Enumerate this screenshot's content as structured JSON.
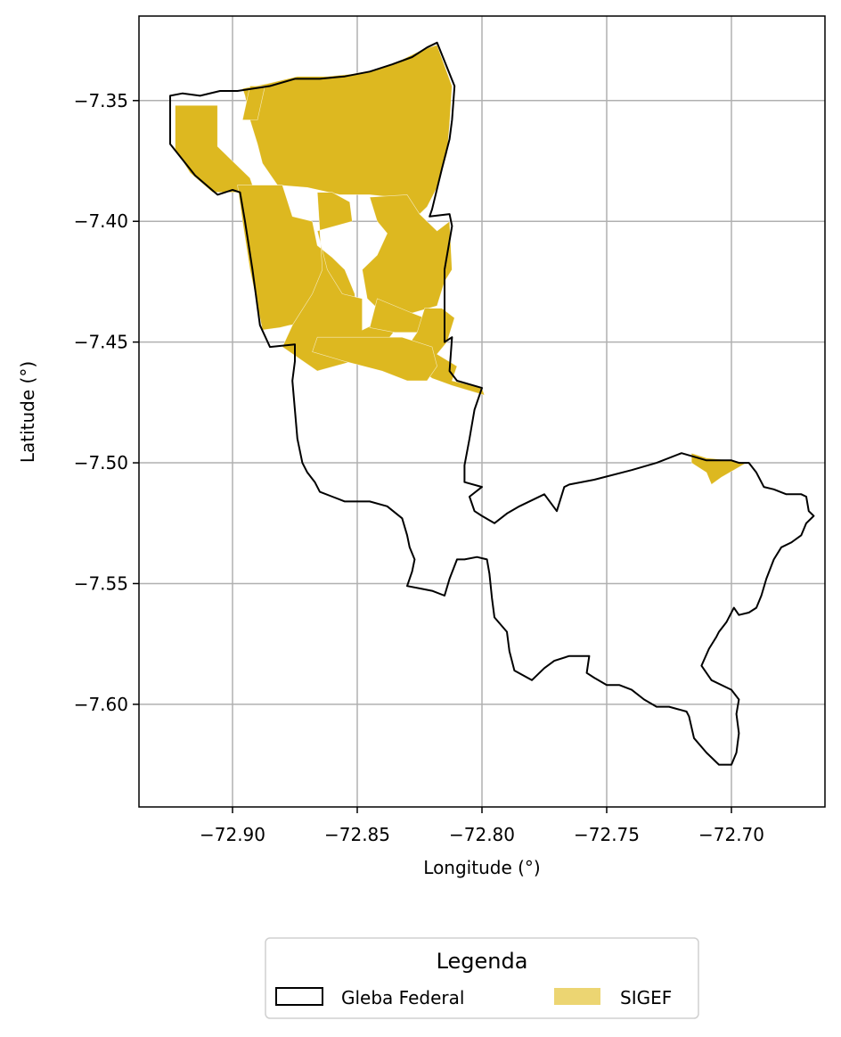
{
  "chart_data": {
    "type": "map",
    "xlabel": "Longitude (°)",
    "ylabel": "Latitude (°)",
    "xlim": [
      -72.9375,
      -72.6625
    ],
    "ylim": [
      -7.6425,
      -7.315
    ],
    "x_ticks": [
      -72.9,
      -72.85,
      -72.8,
      -72.75,
      -72.7
    ],
    "x_tick_labels": [
      "−72.90",
      "−72.85",
      "−72.80",
      "−72.75",
      "−72.70"
    ],
    "y_ticks": [
      -7.35,
      -7.4,
      -7.45,
      -7.5,
      -7.55,
      -7.6
    ],
    "y_tick_labels": [
      "−7.35",
      "−7.40",
      "−7.45",
      "−7.50",
      "−7.55",
      "−7.60"
    ],
    "grid": true,
    "colors": {
      "sigef": "#ddb820",
      "sigef_legend": "#ecd572",
      "boundary": "#000000",
      "grid": "#b0b0b0"
    },
    "layers": [
      {
        "name": "Gleba Federal",
        "style": "outline",
        "polygon": [
          [
            -72.925,
            -7.348
          ],
          [
            -72.92,
            -7.347
          ],
          [
            -72.913,
            -7.348
          ],
          [
            -72.905,
            -7.346
          ],
          [
            -72.898,
            -7.346
          ],
          [
            -72.885,
            -7.344
          ],
          [
            -72.875,
            -7.341
          ],
          [
            -72.865,
            -7.341
          ],
          [
            -72.855,
            -7.34
          ],
          [
            -72.845,
            -7.338
          ],
          [
            -72.836,
            -7.335
          ],
          [
            -72.828,
            -7.332
          ],
          [
            -72.822,
            -7.328
          ],
          [
            -72.818,
            -7.326
          ],
          [
            -72.811,
            -7.344
          ],
          [
            -72.812,
            -7.358
          ],
          [
            -72.813,
            -7.366
          ],
          [
            -72.816,
            -7.378
          ],
          [
            -72.82,
            -7.395
          ],
          [
            -72.821,
            -7.398
          ],
          [
            -72.813,
            -7.397
          ],
          [
            -72.812,
            -7.402
          ],
          [
            -72.815,
            -7.42
          ],
          [
            -72.815,
            -7.45
          ],
          [
            -72.812,
            -7.448
          ],
          [
            -72.813,
            -7.462
          ],
          [
            -72.81,
            -7.466
          ],
          [
            -72.8,
            -7.469
          ],
          [
            -72.803,
            -7.478
          ],
          [
            -72.805,
            -7.49
          ],
          [
            -72.807,
            -7.501
          ],
          [
            -72.807,
            -7.508
          ],
          [
            -72.8,
            -7.51
          ],
          [
            -72.805,
            -7.514
          ],
          [
            -72.803,
            -7.52
          ],
          [
            -72.8,
            -7.522
          ],
          [
            -72.795,
            -7.525
          ],
          [
            -72.79,
            -7.521
          ],
          [
            -72.785,
            -7.518
          ],
          [
            -72.775,
            -7.513
          ],
          [
            -72.77,
            -7.52
          ],
          [
            -72.767,
            -7.51
          ],
          [
            -72.765,
            -7.509
          ],
          [
            -72.755,
            -7.507
          ],
          [
            -72.74,
            -7.503
          ],
          [
            -72.73,
            -7.5
          ],
          [
            -72.72,
            -7.496
          ],
          [
            -72.71,
            -7.499
          ],
          [
            -72.7,
            -7.499
          ],
          [
            -72.697,
            -7.5
          ],
          [
            -72.693,
            -7.5
          ],
          [
            -72.69,
            -7.504
          ],
          [
            -72.687,
            -7.51
          ],
          [
            -72.683,
            -7.511
          ],
          [
            -72.678,
            -7.513
          ],
          [
            -72.672,
            -7.513
          ],
          [
            -72.67,
            -7.514
          ],
          [
            -72.669,
            -7.52
          ],
          [
            -72.667,
            -7.522
          ],
          [
            -72.67,
            -7.525
          ],
          [
            -72.672,
            -7.53
          ],
          [
            -72.676,
            -7.533
          ],
          [
            -72.68,
            -7.535
          ],
          [
            -72.683,
            -7.54
          ],
          [
            -72.686,
            -7.548
          ],
          [
            -72.688,
            -7.555
          ],
          [
            -72.69,
            -7.56
          ],
          [
            -72.693,
            -7.562
          ],
          [
            -72.697,
            -7.563
          ],
          [
            -72.699,
            -7.56
          ],
          [
            -72.702,
            -7.566
          ],
          [
            -72.705,
            -7.57
          ],
          [
            -72.706,
            -7.572
          ],
          [
            -72.709,
            -7.577
          ],
          [
            -72.712,
            -7.584
          ],
          [
            -72.708,
            -7.59
          ],
          [
            -72.7,
            -7.594
          ],
          [
            -72.697,
            -7.598
          ],
          [
            -72.698,
            -7.604
          ],
          [
            -72.697,
            -7.612
          ],
          [
            -72.698,
            -7.62
          ],
          [
            -72.7,
            -7.625
          ],
          [
            -72.705,
            -7.625
          ],
          [
            -72.71,
            -7.62
          ],
          [
            -72.715,
            -7.614
          ],
          [
            -72.717,
            -7.605
          ],
          [
            -72.718,
            -7.603
          ],
          [
            -72.725,
            -7.601
          ],
          [
            -72.73,
            -7.601
          ],
          [
            -72.735,
            -7.598
          ],
          [
            -72.74,
            -7.594
          ],
          [
            -72.745,
            -7.592
          ],
          [
            -72.75,
            -7.592
          ],
          [
            -72.755,
            -7.589
          ],
          [
            -72.758,
            -7.587
          ],
          [
            -72.757,
            -7.58
          ],
          [
            -72.765,
            -7.58
          ],
          [
            -72.771,
            -7.582
          ],
          [
            -72.775,
            -7.585
          ],
          [
            -72.78,
            -7.59
          ],
          [
            -72.787,
            -7.586
          ],
          [
            -72.789,
            -7.578
          ],
          [
            -72.79,
            -7.57
          ],
          [
            -72.795,
            -7.564
          ],
          [
            -72.796,
            -7.556
          ],
          [
            -72.797,
            -7.546
          ],
          [
            -72.798,
            -7.54
          ],
          [
            -72.802,
            -7.539
          ],
          [
            -72.807,
            -7.54
          ],
          [
            -72.81,
            -7.54
          ],
          [
            -72.813,
            -7.548
          ],
          [
            -72.815,
            -7.555
          ],
          [
            -72.82,
            -7.553
          ],
          [
            -72.825,
            -7.552
          ],
          [
            -72.83,
            -7.551
          ],
          [
            -72.828,
            -7.545
          ],
          [
            -72.827,
            -7.54
          ],
          [
            -72.829,
            -7.535
          ],
          [
            -72.83,
            -7.53
          ],
          [
            -72.832,
            -7.523
          ],
          [
            -72.838,
            -7.518
          ],
          [
            -72.845,
            -7.516
          ],
          [
            -72.855,
            -7.516
          ],
          [
            -72.86,
            -7.514
          ],
          [
            -72.865,
            -7.512
          ],
          [
            -72.867,
            -7.508
          ],
          [
            -72.87,
            -7.504
          ],
          [
            -72.872,
            -7.5
          ],
          [
            -72.874,
            -7.49
          ],
          [
            -72.875,
            -7.478
          ],
          [
            -72.876,
            -7.466
          ],
          [
            -72.875,
            -7.458
          ],
          [
            -72.875,
            -7.451
          ],
          [
            -72.885,
            -7.452
          ],
          [
            -72.889,
            -7.443
          ],
          [
            -72.892,
            -7.42
          ],
          [
            -72.895,
            -7.4
          ],
          [
            -72.897,
            -7.388
          ],
          [
            -72.9,
            -7.387
          ],
          [
            -72.906,
            -7.389
          ],
          [
            -72.915,
            -7.381
          ],
          [
            -72.925,
            -7.368
          ],
          [
            -72.925,
            -7.348
          ]
        ]
      },
      {
        "name": "SIGEF",
        "style": "fill",
        "polygons": [
          [
            [
              -72.923,
              -7.352
            ],
            [
              -72.906,
              -7.352
            ],
            [
              -72.906,
              -7.369
            ],
            [
              -72.893,
              -7.382
            ],
            [
              -72.891,
              -7.388
            ],
            [
              -72.908,
              -7.388
            ],
            [
              -72.917,
              -7.38
            ],
            [
              -72.923,
              -7.37
            ]
          ],
          [
            [
              -72.896,
              -7.345
            ],
            [
              -72.886,
              -7.343
            ],
            [
              -72.874,
              -7.34
            ],
            [
              -72.862,
              -7.34
            ],
            [
              -72.852,
              -7.339
            ],
            [
              -72.842,
              -7.337
            ],
            [
              -72.832,
              -7.333
            ],
            [
              -72.824,
              -7.329
            ],
            [
              -72.818,
              -7.327
            ],
            [
              -72.812,
              -7.344
            ],
            [
              -72.813,
              -7.36
            ],
            [
              -72.814,
              -7.372
            ],
            [
              -72.818,
              -7.386
            ],
            [
              -72.822,
              -7.394
            ],
            [
              -72.825,
              -7.397
            ],
            [
              -72.83,
              -7.393
            ],
            [
              -72.836,
              -7.39
            ],
            [
              -72.845,
              -7.389
            ],
            [
              -72.857,
              -7.389
            ],
            [
              -72.87,
              -7.386
            ],
            [
              -72.882,
              -7.385
            ],
            [
              -72.888,
              -7.376
            ],
            [
              -72.89,
              -7.368
            ],
            [
              -72.893,
              -7.358
            ],
            [
              -72.895,
              -7.348
            ]
          ],
          [
            [
              -72.893,
              -7.344
            ],
            [
              -72.887,
              -7.344
            ],
            [
              -72.89,
              -7.358
            ],
            [
              -72.896,
              -7.358
            ]
          ],
          [
            [
              -72.898,
              -7.385
            ],
            [
              -72.88,
              -7.385
            ],
            [
              -72.876,
              -7.398
            ],
            [
              -72.868,
              -7.4
            ],
            [
              -72.866,
              -7.41
            ],
            [
              -72.86,
              -7.415
            ],
            [
              -72.855,
              -7.42
            ],
            [
              -72.851,
              -7.43
            ],
            [
              -72.85,
              -7.44
            ],
            [
              -72.852,
              -7.45
            ],
            [
              -72.862,
              -7.445
            ],
            [
              -72.87,
              -7.442
            ],
            [
              -72.877,
              -7.443
            ],
            [
              -72.881,
              -7.444
            ],
            [
              -72.888,
              -7.445
            ],
            [
              -72.893,
              -7.42
            ],
            [
              -72.896,
              -7.4
            ]
          ],
          [
            [
              -72.866,
              -7.388
            ],
            [
              -72.86,
              -7.388
            ],
            [
              -72.853,
              -7.392
            ],
            [
              -72.852,
              -7.4
            ],
            [
              -72.866,
              -7.404
            ],
            [
              -72.862,
              -7.42
            ],
            [
              -72.856,
              -7.43
            ],
            [
              -72.848,
              -7.432
            ],
            [
              -72.848,
              -7.445
            ],
            [
              -72.838,
              -7.44
            ],
            [
              -72.834,
              -7.444
            ],
            [
              -72.84,
              -7.452
            ],
            [
              -72.852,
              -7.458
            ],
            [
              -72.866,
              -7.462
            ],
            [
              -72.88,
              -7.452
            ],
            [
              -72.876,
              -7.443
            ],
            [
              -72.868,
              -7.43
            ],
            [
              -72.864,
              -7.42
            ]
          ],
          [
            [
              -72.845,
              -7.39
            ],
            [
              -72.83,
              -7.389
            ],
            [
              -72.825,
              -7.397
            ],
            [
              -72.818,
              -7.404
            ],
            [
              -72.813,
              -7.4
            ],
            [
              -72.812,
              -7.42
            ],
            [
              -72.815,
              -7.425
            ],
            [
              -72.818,
              -7.435
            ],
            [
              -72.828,
              -7.438
            ],
            [
              -72.84,
              -7.438
            ],
            [
              -72.846,
              -7.432
            ],
            [
              -72.848,
              -7.42
            ],
            [
              -72.842,
              -7.414
            ],
            [
              -72.838,
              -7.405
            ],
            [
              -72.842,
              -7.4
            ]
          ],
          [
            [
              -72.842,
              -7.432
            ],
            [
              -72.828,
              -7.438
            ],
            [
              -72.823,
              -7.44
            ],
            [
              -72.825,
              -7.446
            ],
            [
              -72.835,
              -7.446
            ],
            [
              -72.845,
              -7.444
            ]
          ],
          [
            [
              -72.823,
              -7.436
            ],
            [
              -72.816,
              -7.436
            ],
            [
              -72.811,
              -7.44
            ],
            [
              -72.814,
              -7.45
            ],
            [
              -72.818,
              -7.455
            ],
            [
              -72.81,
              -7.46
            ],
            [
              -72.812,
              -7.466
            ],
            [
              -72.8,
              -7.469
            ],
            [
              -72.799,
              -7.472
            ],
            [
              -72.812,
              -7.468
            ],
            [
              -72.82,
              -7.465
            ],
            [
              -72.824,
              -7.462
            ],
            [
              -72.828,
              -7.458
            ],
            [
              -72.83,
              -7.452
            ],
            [
              -72.826,
              -7.446
            ]
          ],
          [
            [
              -72.832,
              -7.448
            ],
            [
              -72.866,
              -7.448
            ],
            [
              -72.868,
              -7.454
            ],
            [
              -72.855,
              -7.458
            ],
            [
              -72.84,
              -7.462
            ],
            [
              -72.83,
              -7.466
            ],
            [
              -72.822,
              -7.466
            ],
            [
              -72.818,
              -7.46
            ],
            [
              -72.82,
              -7.452
            ]
          ],
          [
            [
              -72.716,
              -7.496
            ],
            [
              -72.71,
              -7.498
            ],
            [
              -72.7,
              -7.499
            ],
            [
              -72.694,
              -7.5
            ],
            [
              -72.704,
              -7.506
            ],
            [
              -72.708,
              -7.509
            ],
            [
              -72.71,
              -7.504
            ],
            [
              -72.716,
              -7.5
            ]
          ]
        ]
      }
    ],
    "legend": {
      "title": "Legenda",
      "location": "below plot, centered",
      "entries": [
        {
          "label": "Gleba Federal",
          "style": "outline"
        },
        {
          "label": "SIGEF",
          "style": "fill"
        }
      ]
    }
  }
}
